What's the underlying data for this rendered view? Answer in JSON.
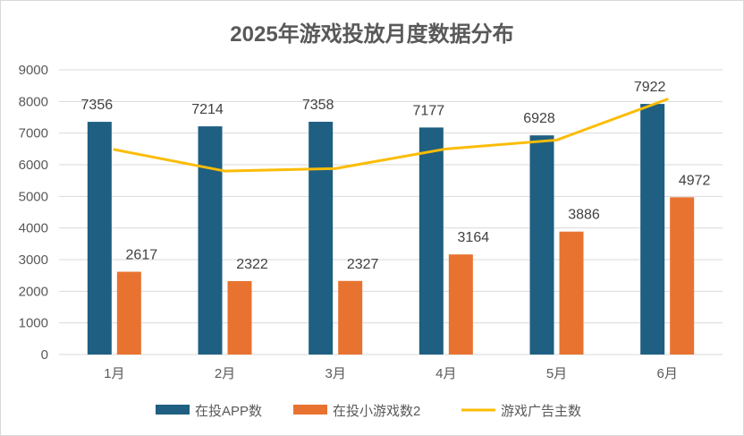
{
  "chart_data": {
    "type": "bar",
    "title": "2025年游戏投放月度数据分布",
    "xlabel": "",
    "ylabel": "",
    "categories": [
      "1月",
      "2月",
      "3月",
      "4月",
      "5月",
      "6月"
    ],
    "ylim": [
      0,
      9000
    ],
    "yticks": [
      0,
      1000,
      2000,
      3000,
      4000,
      5000,
      6000,
      7000,
      8000,
      9000
    ],
    "grid": true,
    "legend_position": "bottom",
    "series": [
      {
        "name": "在投APP数",
        "type": "bar",
        "color": "#1f5f82",
        "values": [
          7356,
          7214,
          7358,
          7177,
          6928,
          7922
        ],
        "labels": [
          "7356",
          "7214",
          "7358",
          "7177",
          "6928",
          "7922"
        ]
      },
      {
        "name": "在投小游戏数2",
        "type": "bar",
        "color": "#e87331",
        "values": [
          2617,
          2322,
          2327,
          3164,
          3886,
          4972
        ],
        "labels": [
          "2617",
          "2322",
          "2327",
          "3164",
          "3886",
          "4972"
        ]
      },
      {
        "name": "游戏广告主数",
        "type": "line",
        "color": "#fbbc05",
        "values": [
          6480,
          5800,
          5880,
          6500,
          6780,
          8070
        ]
      }
    ]
  }
}
